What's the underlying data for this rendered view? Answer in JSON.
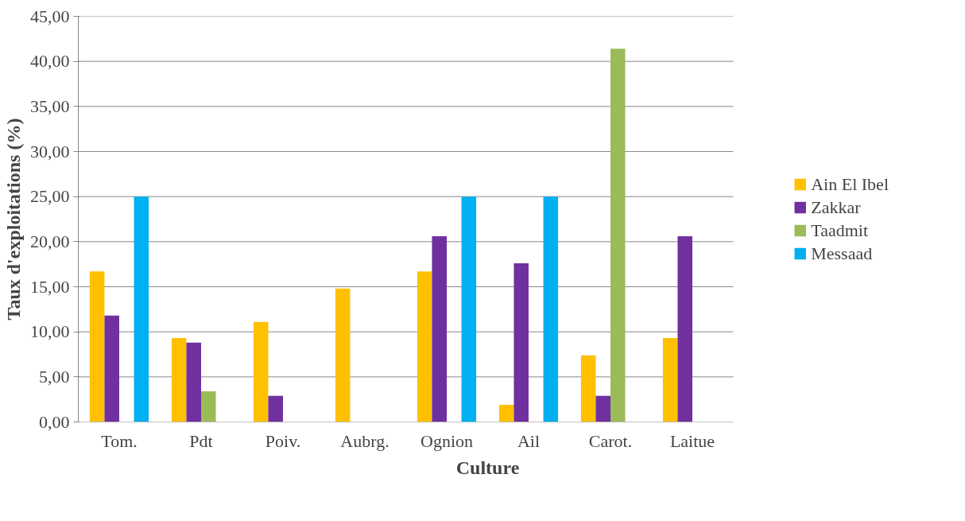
{
  "chart_data": {
    "type": "bar",
    "xlabel": "Culture",
    "ylabel": "Taux d'exploitations (%)",
    "categories": [
      "Tom.",
      "Pdt",
      "Poiv.",
      "Aubrg.",
      "Ognion",
      "Ail",
      "Carot.",
      "Laitue"
    ],
    "series": [
      {
        "name": "Ain El Ibel",
        "color": "#ffc000",
        "values": [
          16.7,
          9.3,
          11.1,
          14.8,
          16.7,
          1.9,
          7.4,
          9.3
        ]
      },
      {
        "name": "Zakkar",
        "color": "#7030a0",
        "values": [
          11.8,
          8.8,
          2.9,
          null,
          20.6,
          17.6,
          2.9,
          20.6
        ]
      },
      {
        "name": "Taadmit",
        "color": "#9bbb59",
        "values": [
          null,
          3.4,
          null,
          null,
          null,
          null,
          41.4,
          null
        ]
      },
      {
        "name": "Messaad",
        "color": "#00b0f0",
        "values": [
          25,
          null,
          null,
          null,
          25,
          25,
          null,
          null
        ]
      }
    ],
    "ylim": [
      0,
      45
    ],
    "yticks": [
      {
        "value": 0,
        "label": "0,00"
      },
      {
        "value": 5,
        "label": "5,00"
      },
      {
        "value": 10,
        "label": "10,00"
      },
      {
        "value": 15,
        "label": "15,00"
      },
      {
        "value": 20,
        "label": "20,00"
      },
      {
        "value": 25,
        "label": "25,00"
      },
      {
        "value": 30,
        "label": "30,00"
      },
      {
        "value": 35,
        "label": "35,00"
      },
      {
        "value": 40,
        "label": "40,00"
      },
      {
        "value": 45,
        "label": "45,00"
      }
    ],
    "grid": "y",
    "legend": "right"
  }
}
